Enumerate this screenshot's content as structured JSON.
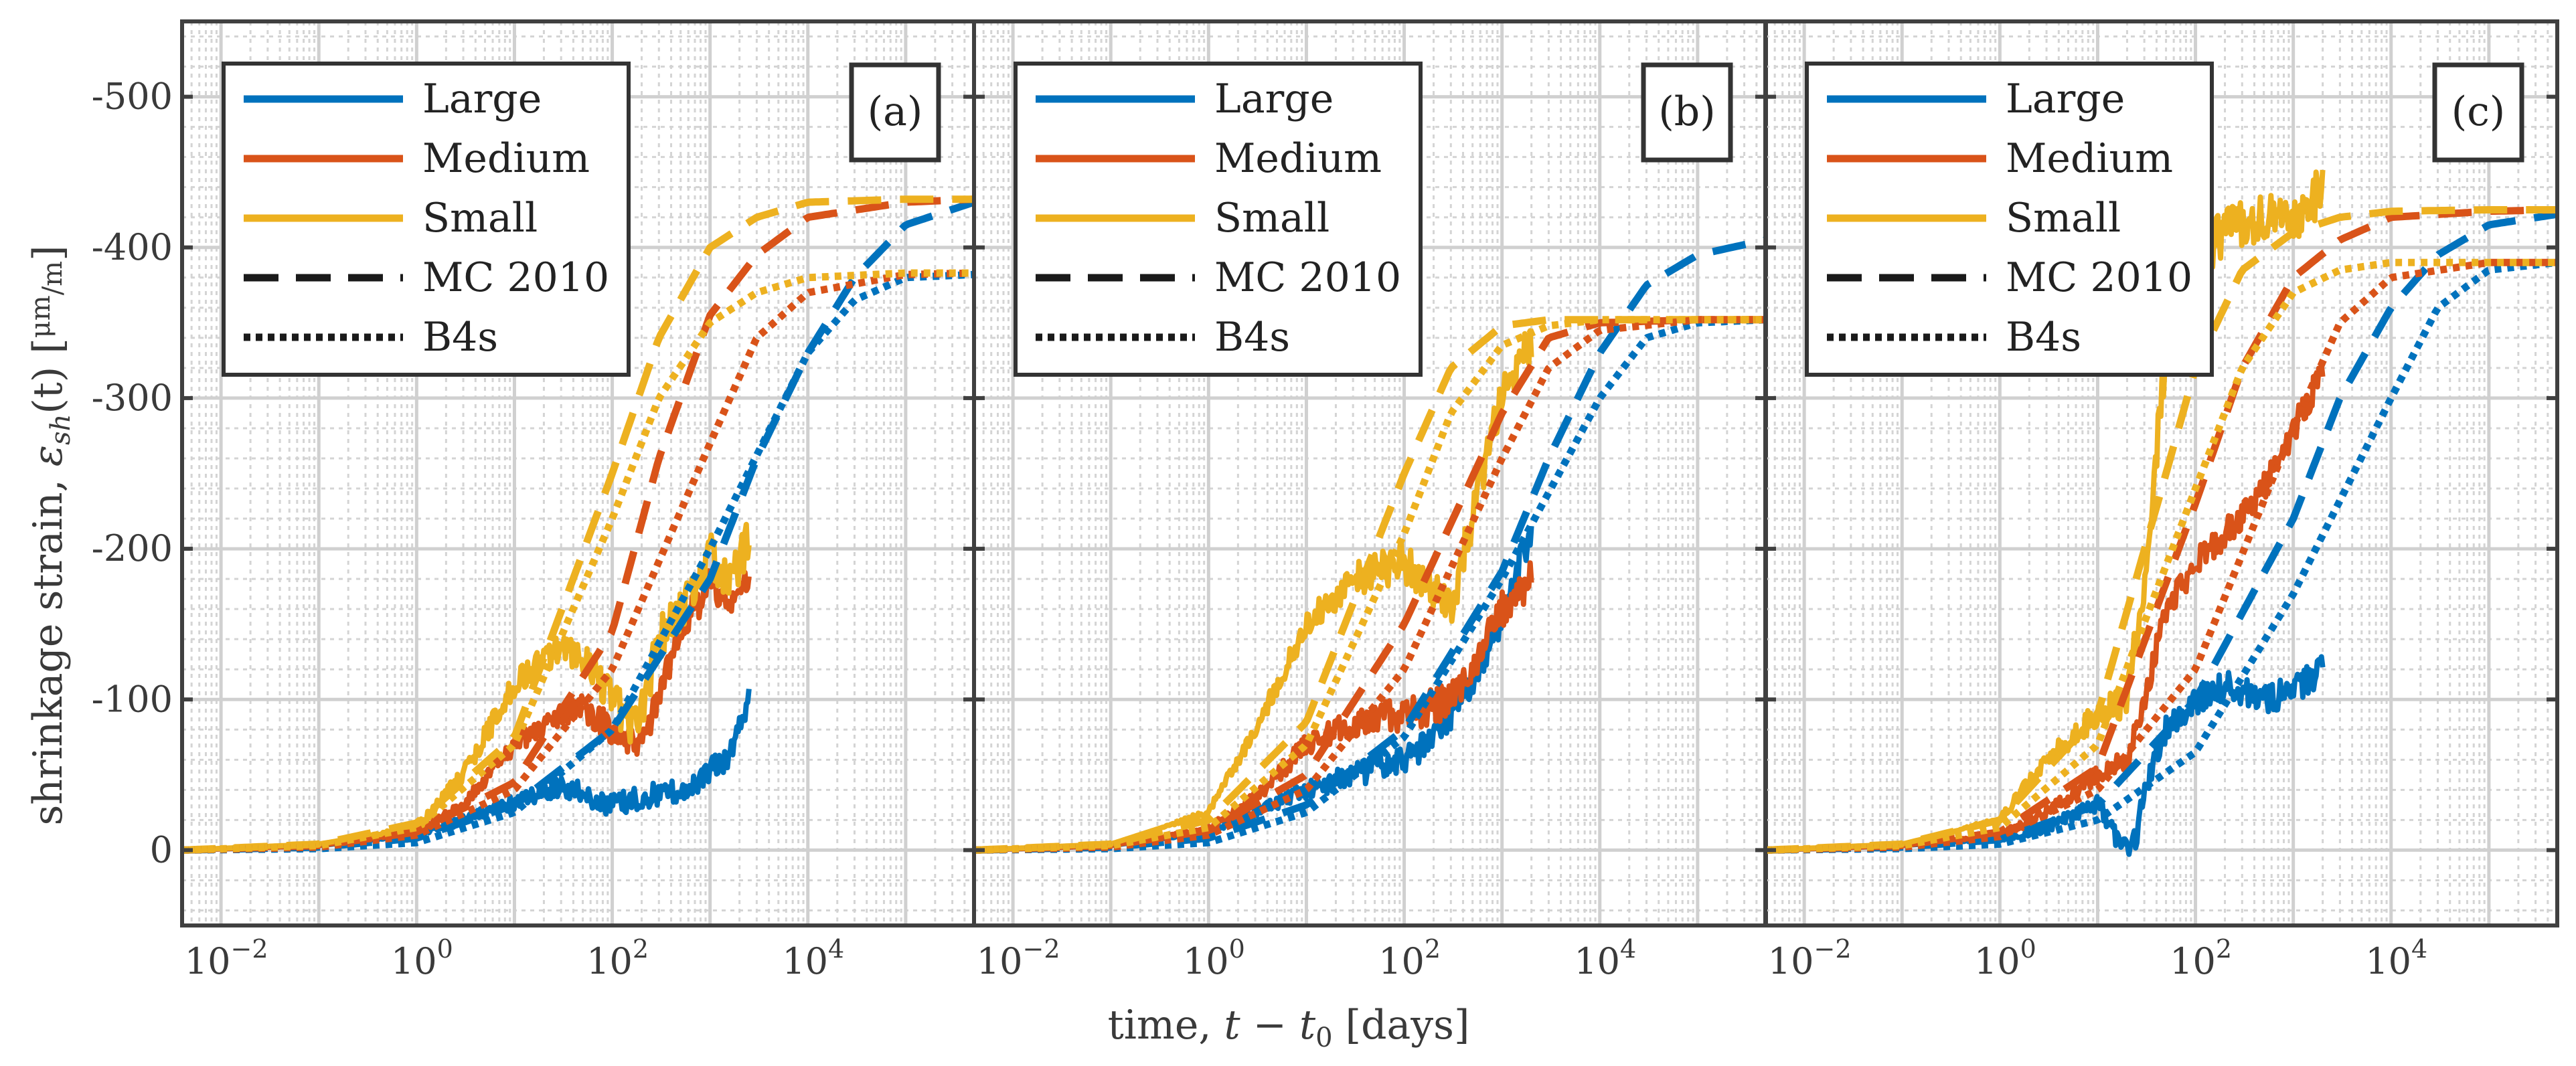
{
  "chart_data": {
    "type": "line",
    "ylabel": "shrinkage strain, εsh(t) [μm/m]",
    "ylabel_parts": {
      "prefix": "shrinkage strain, ",
      "symbol": "ε",
      "sub": "sh",
      "arg": "(t)",
      "unit_num": "μm",
      "unit_den": "m"
    },
    "xlabel": "time, t − t0 [days]",
    "xlabel_parts": {
      "prefix": "time, ",
      "var": "t − t",
      "sub": "0",
      "unit": " [days]"
    },
    "xscale": "log",
    "xlim": [
      0.004,
      500000
    ],
    "ylim": [
      50,
      -550
    ],
    "yticks": [
      {
        "value": 0,
        "label": "0"
      },
      {
        "value": -100,
        "label": "-100"
      },
      {
        "value": -200,
        "label": "-200"
      },
      {
        "value": -300,
        "label": "-300"
      },
      {
        "value": -400,
        "label": "-400"
      },
      {
        "value": -500,
        "label": "-500"
      }
    ],
    "xticks": [
      {
        "value": 0.01,
        "base": "10",
        "exp": "−2"
      },
      {
        "value": 1,
        "base": "10",
        "exp": "0"
      },
      {
        "value": 100,
        "base": "10",
        "exp": "2"
      },
      {
        "value": 10000,
        "base": "10",
        "exp": "4"
      }
    ],
    "grid": true,
    "colors": {
      "Large": "#0072BD",
      "Medium": "#D95319",
      "Small": "#EDB120",
      "model": "#1a1a1a",
      "grid": "#cfcfcf",
      "frame": "#404040"
    },
    "legend": {
      "placement": "top-left",
      "entries": [
        {
          "label": "Large",
          "style": "solid",
          "color": "#0072BD"
        },
        {
          "label": "Medium",
          "style": "solid",
          "color": "#D95319"
        },
        {
          "label": "Small",
          "style": "solid",
          "color": "#EDB120"
        },
        {
          "label": "MC 2010",
          "style": "dashed",
          "color": "#1a1a1a"
        },
        {
          "label": "B4s",
          "style": "dotted",
          "color": "#1a1a1a"
        }
      ]
    },
    "panels": [
      {
        "tag": "(a)",
        "series": [
          {
            "name": "Large",
            "kind": "measured",
            "x": [
              0.004,
              0.1,
              1,
              3,
              10,
              30,
              50,
              80,
              120,
              200,
              300,
              500,
              800,
              1000,
              1500,
              2000,
              2500
            ],
            "y": [
              0,
              -3,
              -10,
              -20,
              -32,
              -42,
              -38,
              -30,
              -32,
              -35,
              -38,
              -40,
              -45,
              -55,
              -60,
              -85,
              -100
            ],
            "noise": 8
          },
          {
            "name": "Medium",
            "kind": "measured",
            "x": [
              0.004,
              0.1,
              1,
              3,
              10,
              30,
              50,
              100,
              150,
              200,
              300,
              500,
              800,
              1000,
              1500,
              2000,
              2500
            ],
            "y": [
              0,
              -3,
              -12,
              -30,
              -70,
              -90,
              -95,
              -80,
              -70,
              -70,
              -100,
              -150,
              -165,
              -180,
              -160,
              -170,
              -180
            ],
            "noise": 10
          },
          {
            "name": "Small",
            "kind": "measured",
            "x": [
              0.004,
              0.1,
              1,
              3,
              10,
              30,
              50,
              100,
              150,
              200,
              300,
              500,
              800,
              1000,
              1500,
              2000,
              2500
            ],
            "y": [
              0,
              -4,
              -15,
              -50,
              -110,
              -135,
              -130,
              -100,
              -85,
              -90,
              -140,
              -160,
              -180,
              -200,
              -175,
              -190,
              -210
            ],
            "noise": 14
          },
          {
            "name": "Large",
            "kind": "MC 2010",
            "x": [
              0.004,
              0.1,
              1,
              10,
              100,
              1000,
              3000,
              10000,
              30000,
              100000,
              500000
            ],
            "y": [
              0,
              -2,
              -8,
              -30,
              -80,
              -180,
              -260,
              -330,
              -380,
              -415,
              -430
            ]
          },
          {
            "name": "Medium",
            "kind": "MC 2010",
            "x": [
              0.004,
              0.1,
              1,
              10,
              100,
              300,
              1000,
              3000,
              10000,
              100000,
              500000
            ],
            "y": [
              0,
              -3,
              -12,
              -45,
              -145,
              -260,
              -355,
              -395,
              -420,
              -430,
              -432
            ]
          },
          {
            "name": "Small",
            "kind": "MC 2010",
            "x": [
              0.004,
              0.1,
              1,
              10,
              100,
              300,
              1000,
              3000,
              10000,
              100000,
              500000
            ],
            "y": [
              0,
              -4,
              -18,
              -75,
              -250,
              -340,
              -400,
              -420,
              -430,
              -432,
              -432
            ]
          },
          {
            "name": "Large",
            "kind": "B4s",
            "x": [
              0.004,
              0.1,
              1,
              10,
              100,
              1000,
              10000,
              30000,
              100000,
              500000
            ],
            "y": [
              0,
              -1,
              -5,
              -25,
              -80,
              -200,
              -330,
              -365,
              -380,
              -382
            ]
          },
          {
            "name": "Medium",
            "kind": "B4s",
            "x": [
              0.004,
              0.1,
              1,
              10,
              100,
              1000,
              3000,
              10000,
              100000,
              500000
            ],
            "y": [
              0,
              -2,
              -10,
              -40,
              -120,
              -270,
              -340,
              -370,
              -382,
              -383
            ]
          },
          {
            "name": "Small",
            "kind": "B4s",
            "x": [
              0.004,
              0.1,
              1,
              10,
              100,
              300,
              1000,
              3000,
              10000,
              100000,
              500000
            ],
            "y": [
              0,
              -3,
              -15,
              -70,
              -220,
              -300,
              -350,
              -370,
              -380,
              -383,
              -383
            ]
          }
        ]
      },
      {
        "tag": "(b)",
        "series": [
          {
            "name": "Large",
            "kind": "measured",
            "x": [
              0.004,
              0.1,
              1,
              3,
              10,
              30,
              100,
              200,
              300,
              500,
              800,
              1000,
              1500,
              2000
            ],
            "y": [
              0,
              -3,
              -12,
              -25,
              -40,
              -50,
              -60,
              -75,
              -90,
              -110,
              -140,
              -150,
              -190,
              -210
            ],
            "noise": 10
          },
          {
            "name": "Medium",
            "kind": "measured",
            "x": [
              0.004,
              0.1,
              1,
              3,
              10,
              30,
              100,
              200,
              300,
              500,
              800,
              1000,
              1500,
              2000
            ],
            "y": [
              0,
              -3,
              -14,
              -35,
              -70,
              -85,
              -90,
              -95,
              -100,
              -120,
              -150,
              -160,
              -170,
              -180
            ],
            "noise": 12
          },
          {
            "name": "Small",
            "kind": "measured",
            "x": [
              0.004,
              0.1,
              1,
              3,
              10,
              30,
              50,
              100,
              200,
              300,
              500,
              800,
              1000,
              1500,
              2000
            ],
            "y": [
              0,
              -4,
              -25,
              -80,
              -150,
              -180,
              -185,
              -190,
              -170,
              -160,
              -220,
              -280,
              -300,
              -320,
              -340
            ],
            "noise": 14
          },
          {
            "name": "Large",
            "kind": "MC 2010",
            "x": [
              0.004,
              0.1,
              1,
              10,
              100,
              1000,
              3000,
              10000,
              30000,
              100000,
              500000
            ],
            "y": [
              0,
              -2,
              -8,
              -30,
              -80,
              -185,
              -260,
              -330,
              -375,
              -395,
              -405
            ]
          },
          {
            "name": "Medium",
            "kind": "MC 2010",
            "x": [
              0.004,
              0.1,
              1,
              10,
              100,
              1000,
              3000,
              10000,
              100000,
              500000
            ],
            "y": [
              0,
              -3,
              -13,
              -50,
              -150,
              -290,
              -340,
              -350,
              -352,
              -352
            ]
          },
          {
            "name": "Small",
            "kind": "MC 2010",
            "x": [
              0.004,
              0.1,
              1,
              10,
              100,
              300,
              1000,
              3000,
              10000,
              100000,
              500000
            ],
            "y": [
              0,
              -4,
              -20,
              -85,
              -250,
              -320,
              -348,
              -352,
              -352,
              -352,
              -352
            ]
          },
          {
            "name": "Large",
            "kind": "B4s",
            "x": [
              0.004,
              0.1,
              1,
              10,
              100,
              1000,
              10000,
              30000,
              100000,
              500000
            ],
            "y": [
              0,
              -1,
              -5,
              -25,
              -75,
              -180,
              -300,
              -340,
              -350,
              -352
            ]
          },
          {
            "name": "Medium",
            "kind": "B4s",
            "x": [
              0.004,
              0.1,
              1,
              10,
              100,
              1000,
              3000,
              10000,
              100000,
              500000
            ],
            "y": [
              0,
              -2,
              -10,
              -40,
              -120,
              -260,
              -320,
              -345,
              -352,
              -352
            ]
          },
          {
            "name": "Small",
            "kind": "B4s",
            "x": [
              0.004,
              0.1,
              1,
              10,
              100,
              300,
              1000,
              3000,
              10000,
              100000,
              500000
            ],
            "y": [
              0,
              -3,
              -15,
              -70,
              -210,
              -290,
              -335,
              -348,
              -352,
              -352,
              -352
            ]
          }
        ]
      },
      {
        "tag": "(c)",
        "series": [
          {
            "name": "Large",
            "kind": "measured",
            "x": [
              0.004,
              0.1,
              1,
              3,
              10,
              15,
              20,
              25,
              30,
              50,
              100,
              200,
              500,
              1000,
              2000
            ],
            "y": [
              0,
              -3,
              -8,
              -15,
              -30,
              -10,
              0,
              -10,
              -40,
              -80,
              -100,
              -110,
              -100,
              -105,
              -120
            ],
            "noise": 10
          },
          {
            "name": "Medium",
            "kind": "measured",
            "x": [
              0.004,
              0.1,
              1,
              3,
              10,
              20,
              30,
              50,
              100,
              200,
              500,
              1000,
              1500,
              2000
            ],
            "y": [
              0,
              -3,
              -10,
              -25,
              -50,
              -60,
              -100,
              -160,
              -190,
              -210,
              -240,
              -280,
              -300,
              -320
            ],
            "noise": 10
          },
          {
            "name": "Small",
            "kind": "measured",
            "x": [
              0.004,
              0.1,
              1,
              3,
              10,
              20,
              30,
              50,
              60,
              100,
              200,
              500,
              1000,
              1500,
              2000
            ],
            "y": [
              0,
              -4,
              -20,
              -60,
              -90,
              -100,
              -180,
              -330,
              -360,
              -390,
              -410,
              -420,
              -420,
              -430,
              -440
            ],
            "noise": 16
          },
          {
            "name": "Large",
            "kind": "MC 2010",
            "x": [
              0.004,
              0.1,
              1,
              10,
              100,
              1000,
              3000,
              10000,
              30000,
              100000,
              500000
            ],
            "y": [
              0,
              -2,
              -7,
              -30,
              -100,
              -220,
              -300,
              -360,
              -395,
              -415,
              -422
            ]
          },
          {
            "name": "Medium",
            "kind": "MC 2010",
            "x": [
              0.004,
              0.1,
              1,
              10,
              100,
              300,
              1000,
              3000,
              10000,
              100000,
              500000
            ],
            "y": [
              0,
              -3,
              -12,
              -55,
              -230,
              -320,
              -380,
              -405,
              -420,
              -424,
              -425
            ]
          },
          {
            "name": "Small",
            "kind": "MC 2010",
            "x": [
              0.004,
              0.1,
              1,
              10,
              50,
              100,
              300,
              1000,
              3000,
              10000,
              100000,
              500000
            ],
            "y": [
              0,
              -4,
              -20,
              -90,
              -250,
              -320,
              -385,
              -410,
              -420,
              -424,
              -425,
              -425
            ]
          },
          {
            "name": "Large",
            "kind": "B4s",
            "x": [
              0.004,
              0.1,
              1,
              10,
              100,
              1000,
              10000,
              30000,
              100000,
              500000
            ],
            "y": [
              0,
              -1,
              -4,
              -20,
              -65,
              -170,
              -300,
              -360,
              -385,
              -390
            ]
          },
          {
            "name": "Medium",
            "kind": "B4s",
            "x": [
              0.004,
              0.1,
              1,
              10,
              100,
              1000,
              3000,
              10000,
              100000,
              500000
            ],
            "y": [
              0,
              -2,
              -9,
              -40,
              -120,
              -280,
              -350,
              -380,
              -390,
              -390
            ]
          },
          {
            "name": "Small",
            "kind": "B4s",
            "x": [
              0.004,
              0.1,
              1,
              10,
              100,
              300,
              1000,
              3000,
              10000,
              100000,
              500000
            ],
            "y": [
              0,
              -3,
              -15,
              -70,
              -240,
              -320,
              -370,
              -385,
              -390,
              -390,
              -390
            ]
          }
        ]
      }
    ]
  }
}
